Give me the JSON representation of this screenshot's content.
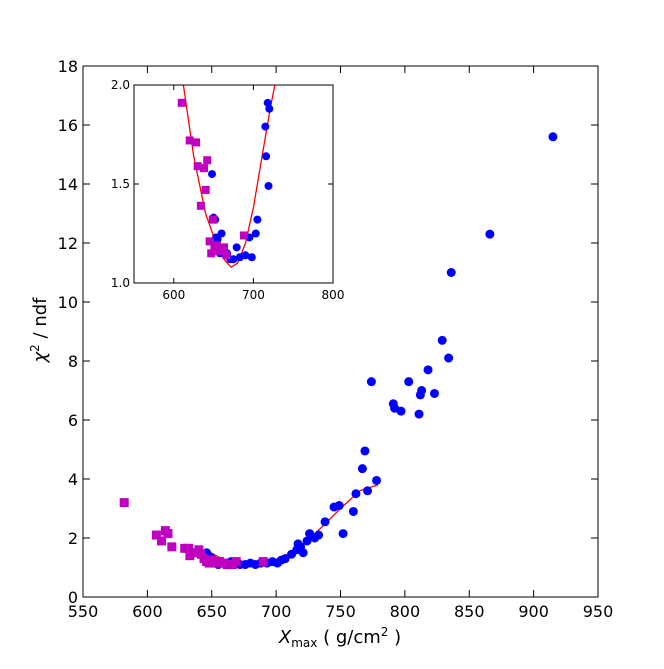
{
  "chart_data": [
    {
      "type": "scatter",
      "panel": "main",
      "xlabel": {
        "symbol": "X",
        "subscript": "max",
        "unit_prefix": " ( g/cm",
        "unit_power": "2",
        "unit_suffix": " )"
      },
      "ylabel": {
        "symbol": "χ",
        "power": "2",
        "suffix": " / ndf"
      },
      "xlim": [
        550,
        950
      ],
      "ylim": [
        0,
        18
      ],
      "xticks": [
        "550",
        "600",
        "650",
        "700",
        "750",
        "800",
        "850",
        "900",
        "950"
      ],
      "yticks": [
        "0",
        "2",
        "4",
        "6",
        "8",
        "10",
        "12",
        "14",
        "16",
        "18"
      ],
      "grid": false,
      "series": [
        {
          "marker": "circle",
          "color": "#0000ff",
          "points": [
            [
              646,
              1.5
            ],
            [
              649,
              1.35
            ],
            [
              651,
              1.25
            ],
            [
              653,
              1.2
            ],
            [
              655,
              1.1
            ],
            [
              657,
              1.2
            ],
            [
              660,
              1.15
            ],
            [
              662,
              1.1
            ],
            [
              665,
              1.2
            ],
            [
              668,
              1.15
            ],
            [
              672,
              1.1
            ],
            [
              676,
              1.1
            ],
            [
              680,
              1.15
            ],
            [
              684,
              1.1
            ],
            [
              688,
              1.15
            ],
            [
              693,
              1.15
            ],
            [
              697,
              1.2
            ],
            [
              701,
              1.15
            ],
            [
              704,
              1.25
            ],
            [
              707,
              1.3
            ],
            [
              712,
              1.45
            ],
            [
              716,
              1.6
            ],
            [
              717,
              1.8
            ],
            [
              719,
              1.7
            ],
            [
              721,
              1.5
            ],
            [
              724,
              1.9
            ],
            [
              726,
              2.15
            ],
            [
              730,
              2.0
            ],
            [
              733,
              2.1
            ],
            [
              738,
              2.55
            ],
            [
              745,
              3.05
            ],
            [
              749,
              3.1
            ],
            [
              752,
              2.15
            ],
            [
              760,
              2.9
            ],
            [
              762,
              3.5
            ],
            [
              767,
              4.35
            ],
            [
              769,
              4.95
            ],
            [
              771,
              3.6
            ],
            [
              774,
              7.3
            ],
            [
              778,
              3.95
            ],
            [
              791,
              6.55
            ],
            [
              792,
              6.4
            ],
            [
              797,
              6.3
            ],
            [
              803,
              7.3
            ],
            [
              811,
              6.2
            ],
            [
              813,
              7.0
            ],
            [
              812,
              6.85
            ],
            [
              818,
              7.7
            ],
            [
              823,
              6.9
            ],
            [
              829,
              8.7
            ],
            [
              834,
              8.1
            ],
            [
              836,
              11.0
            ],
            [
              866,
              12.3
            ],
            [
              915,
              15.6
            ]
          ]
        },
        {
          "marker": "square",
          "color": "#c000c0",
          "points": [
            [
              582,
              3.2
            ],
            [
              607,
              2.1
            ],
            [
              611,
              1.9
            ],
            [
              614,
              2.25
            ],
            [
              616,
              2.15
            ],
            [
              619,
              1.7
            ],
            [
              629,
              1.65
            ],
            [
              632,
              1.65
            ],
            [
              633,
              1.4
            ],
            [
              636,
              1.5
            ],
            [
              640,
              1.6
            ],
            [
              642,
              1.45
            ],
            [
              644,
              1.3
            ],
            [
              646,
              1.2
            ],
            [
              648,
              1.15
            ],
            [
              650,
              1.25
            ],
            [
              653,
              1.15
            ],
            [
              656,
              1.2
            ],
            [
              659,
              1.15
            ],
            [
              662,
              1.1
            ],
            [
              666,
              1.1
            ],
            [
              669,
              1.2
            ],
            [
              690,
              1.2
            ]
          ]
        }
      ],
      "fit_curve": {
        "color": "#ff0000",
        "points": [
          [
            645,
            1.6
          ],
          [
            660,
            1.25
          ],
          [
            675,
            1.1
          ],
          [
            690,
            1.15
          ],
          [
            705,
            1.35
          ],
          [
            720,
            1.75
          ],
          [
            735,
            2.35
          ],
          [
            750,
            3.0
          ],
          [
            765,
            3.6
          ],
          [
            779,
            3.8
          ]
        ]
      }
    },
    {
      "type": "scatter",
      "panel": "inset",
      "xlim": [
        550,
        800
      ],
      "ylim": [
        1.0,
        2.0
      ],
      "xticks": [
        "600",
        "700",
        "800"
      ],
      "yticks": [
        "1.0",
        "1.5",
        "2.0"
      ],
      "grid": false,
      "series": [
        {
          "marker": "circle",
          "color": "#0000ff",
          "points": [
            [
              648,
              1.55
            ],
            [
              650,
              1.33
            ],
            [
              652,
              1.32
            ],
            [
              653,
              1.23
            ],
            [
              655,
              1.22
            ],
            [
              658,
              1.15
            ],
            [
              660,
              1.25
            ],
            [
              663,
              1.15
            ],
            [
              667,
              1.15
            ],
            [
              671,
              1.12
            ],
            [
              675,
              1.12
            ],
            [
              679,
              1.18
            ],
            [
              683,
              1.13
            ],
            [
              690,
              1.14
            ],
            [
              695,
              1.23
            ],
            [
              698,
              1.13
            ],
            [
              703,
              1.25
            ],
            [
              705,
              1.32
            ],
            [
              715,
              1.79
            ],
            [
              716,
              1.64
            ],
            [
              718,
              1.91
            ],
            [
              720,
              1.88
            ],
            [
              719,
              1.49
            ]
          ]
        },
        {
          "marker": "square",
          "color": "#c000c0",
          "points": [
            [
              610,
              1.91
            ],
            [
              620,
              1.72
            ],
            [
              628,
              1.71
            ],
            [
              630,
              1.59
            ],
            [
              634,
              1.39
            ],
            [
              638,
              1.58
            ],
            [
              640,
              1.47
            ],
            [
              642,
              1.62
            ],
            [
              645,
              1.21
            ],
            [
              647,
              1.15
            ],
            [
              649,
              1.32
            ],
            [
              651,
              1.18
            ],
            [
              654,
              1.19
            ],
            [
              657,
              1.16
            ],
            [
              660,
              1.17
            ],
            [
              663,
              1.18
            ],
            [
              666,
              1.14
            ],
            [
              688,
              1.24
            ]
          ]
        }
      ],
      "fit_curve": {
        "color": "#ff0000",
        "points": [
          [
            612,
            2.0
          ],
          [
            625,
            1.64
          ],
          [
            640,
            1.35
          ],
          [
            655,
            1.18
          ],
          [
            665,
            1.11
          ],
          [
            672,
            1.08
          ],
          [
            680,
            1.1
          ],
          [
            690,
            1.2
          ],
          [
            700,
            1.38
          ],
          [
            710,
            1.62
          ],
          [
            722,
            1.9
          ],
          [
            727,
            2.0
          ]
        ]
      }
    }
  ]
}
